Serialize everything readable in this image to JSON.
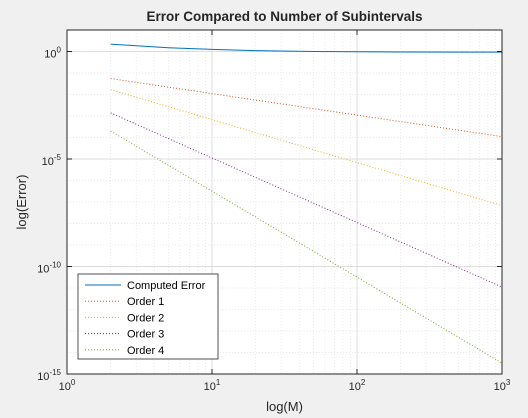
{
  "chart_data": {
    "type": "line",
    "title": "Error Compared to Number of Subintervals",
    "xlabel": "log(M)",
    "ylabel": "log(Error)",
    "xscale": "log",
    "yscale": "log",
    "xlim": [
      1,
      1000
    ],
    "ylim": [
      1e-15,
      10
    ],
    "grid": true,
    "minor_grid": true,
    "legend_location": "bottom-left",
    "x_ticks": [
      {
        "base": "10",
        "exp": "0",
        "value": 1
      },
      {
        "base": "10",
        "exp": "1",
        "value": 10
      },
      {
        "base": "10",
        "exp": "2",
        "value": 100
      },
      {
        "base": "10",
        "exp": "3",
        "value": 1000
      }
    ],
    "y_ticks": [
      {
        "base": "10",
        "exp": "-15",
        "value": 1e-15
      },
      {
        "base": "10",
        "exp": "-10",
        "value": 1e-10
      },
      {
        "base": "10",
        "exp": "-5",
        "value": 1e-05
      },
      {
        "base": "10",
        "exp": "0",
        "value": 1
      }
    ],
    "series": [
      {
        "name": "Computed Error",
        "color": "#0072bd",
        "style": "solid",
        "x": [
          2,
          3,
          5,
          10,
          20,
          50,
          100,
          200,
          500,
          1000
        ],
        "y": [
          2.2,
          1.85,
          1.5,
          1.25,
          1.1,
          1.0,
          0.97,
          0.95,
          0.94,
          0.94
        ]
      },
      {
        "name": "Order 1",
        "color": "#d95319",
        "style": "dotted",
        "x": [
          2,
          1000
        ],
        "y": [
          0.055,
          0.00011
        ]
      },
      {
        "name": "Order 2",
        "color": "#edb120",
        "style": "dotted",
        "x": [
          2,
          1000
        ],
        "y": [
          0.017,
          6.8e-08
        ]
      },
      {
        "name": "Order 3",
        "color": "#7e2f8e",
        "style": "dotted",
        "x": [
          2,
          1000
        ],
        "y": [
          0.0014,
          1.1e-11
        ]
      },
      {
        "name": "Order 4",
        "color": "#77ac30",
        "style": "dotted",
        "x": [
          2,
          1000
        ],
        "y": [
          0.0002,
          3.2e-15
        ]
      }
    ]
  }
}
